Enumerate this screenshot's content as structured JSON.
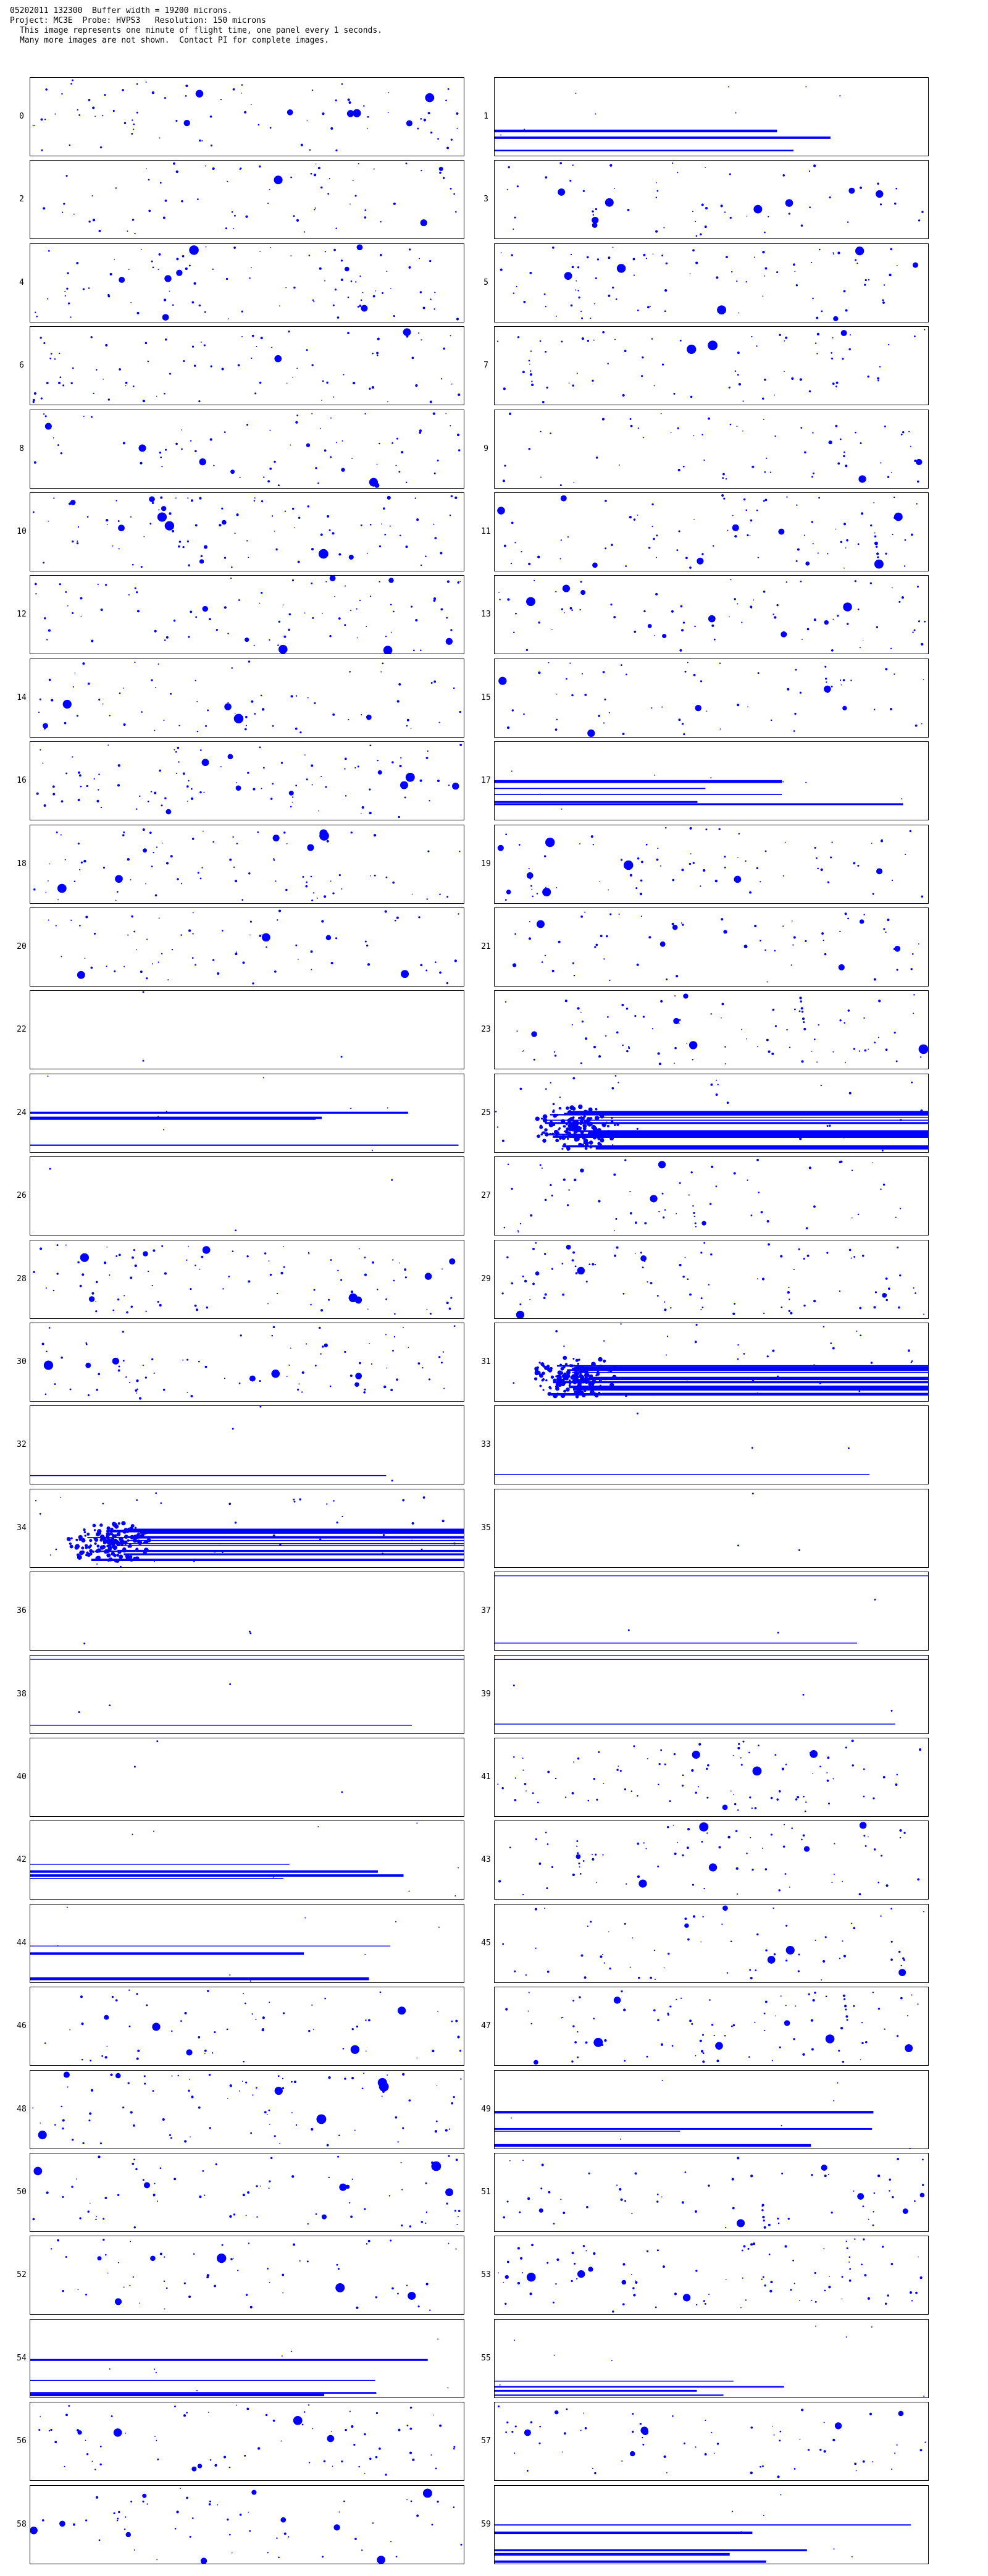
{
  "header": {
    "line1": "05202011 132300  Buffer width = 19200 microns.",
    "line2": "Project: MC3E  Probe: HVPS3   Resolution: 150 microns",
    "line3": "This image represents one minute of flight time, one panel every 1 seconds.",
    "line4": "Many more images are not shown.  Contact PI for complete images."
  },
  "particle_color": "#0000ff",
  "panels": [
    {
      "label": "0",
      "pattern": "sparse"
    },
    {
      "label": "1",
      "pattern": "streak"
    },
    {
      "label": "2",
      "pattern": "sparse"
    },
    {
      "label": "3",
      "pattern": "sparse"
    },
    {
      "label": "4",
      "pattern": "sparse"
    },
    {
      "label": "5",
      "pattern": "sparse"
    },
    {
      "label": "6",
      "pattern": "sparse"
    },
    {
      "label": "7",
      "pattern": "sparse"
    },
    {
      "label": "8",
      "pattern": "sparse"
    },
    {
      "label": "9",
      "pattern": "sparse"
    },
    {
      "label": "10",
      "pattern": "sparse"
    },
    {
      "label": "11",
      "pattern": "sparse"
    },
    {
      "label": "12",
      "pattern": "sparse"
    },
    {
      "label": "13",
      "pattern": "sparse"
    },
    {
      "label": "14",
      "pattern": "sparse"
    },
    {
      "label": "15",
      "pattern": "sparse"
    },
    {
      "label": "16",
      "pattern": "sparse"
    },
    {
      "label": "17",
      "pattern": "streak"
    },
    {
      "label": "18",
      "pattern": "sparse"
    },
    {
      "label": "19",
      "pattern": "sparse"
    },
    {
      "label": "20",
      "pattern": "sparse"
    },
    {
      "label": "21",
      "pattern": "sparse"
    },
    {
      "label": "22",
      "pattern": "empty"
    },
    {
      "label": "23",
      "pattern": "sparse"
    },
    {
      "label": "24",
      "pattern": "streak"
    },
    {
      "label": "25",
      "pattern": "dense"
    },
    {
      "label": "26",
      "pattern": "empty"
    },
    {
      "label": "27",
      "pattern": "sparse"
    },
    {
      "label": "28",
      "pattern": "sparse"
    },
    {
      "label": "29",
      "pattern": "sparse"
    },
    {
      "label": "30",
      "pattern": "sparse"
    },
    {
      "label": "31",
      "pattern": "dense"
    },
    {
      "label": "32",
      "pattern": "empty"
    },
    {
      "label": "33",
      "pattern": "empty"
    },
    {
      "label": "34",
      "pattern": "dense"
    },
    {
      "label": "35",
      "pattern": "empty"
    },
    {
      "label": "36",
      "pattern": "empty"
    },
    {
      "label": "37",
      "pattern": "empty"
    },
    {
      "label": "38",
      "pattern": "empty"
    },
    {
      "label": "39",
      "pattern": "empty"
    },
    {
      "label": "40",
      "pattern": "empty"
    },
    {
      "label": "41",
      "pattern": "sparse"
    },
    {
      "label": "42",
      "pattern": "streak"
    },
    {
      "label": "43",
      "pattern": "sparse"
    },
    {
      "label": "44",
      "pattern": "streak"
    },
    {
      "label": "45",
      "pattern": "sparse"
    },
    {
      "label": "46",
      "pattern": "sparse"
    },
    {
      "label": "47",
      "pattern": "sparse"
    },
    {
      "label": "48",
      "pattern": "sparse"
    },
    {
      "label": "49",
      "pattern": "streak"
    },
    {
      "label": "50",
      "pattern": "sparse"
    },
    {
      "label": "51",
      "pattern": "sparse"
    },
    {
      "label": "52",
      "pattern": "sparse"
    },
    {
      "label": "53",
      "pattern": "sparse"
    },
    {
      "label": "54",
      "pattern": "streak"
    },
    {
      "label": "55",
      "pattern": "streak"
    },
    {
      "label": "56",
      "pattern": "sparse"
    },
    {
      "label": "57",
      "pattern": "sparse"
    },
    {
      "label": "58",
      "pattern": "sparse"
    },
    {
      "label": "59",
      "pattern": "streak"
    }
  ]
}
